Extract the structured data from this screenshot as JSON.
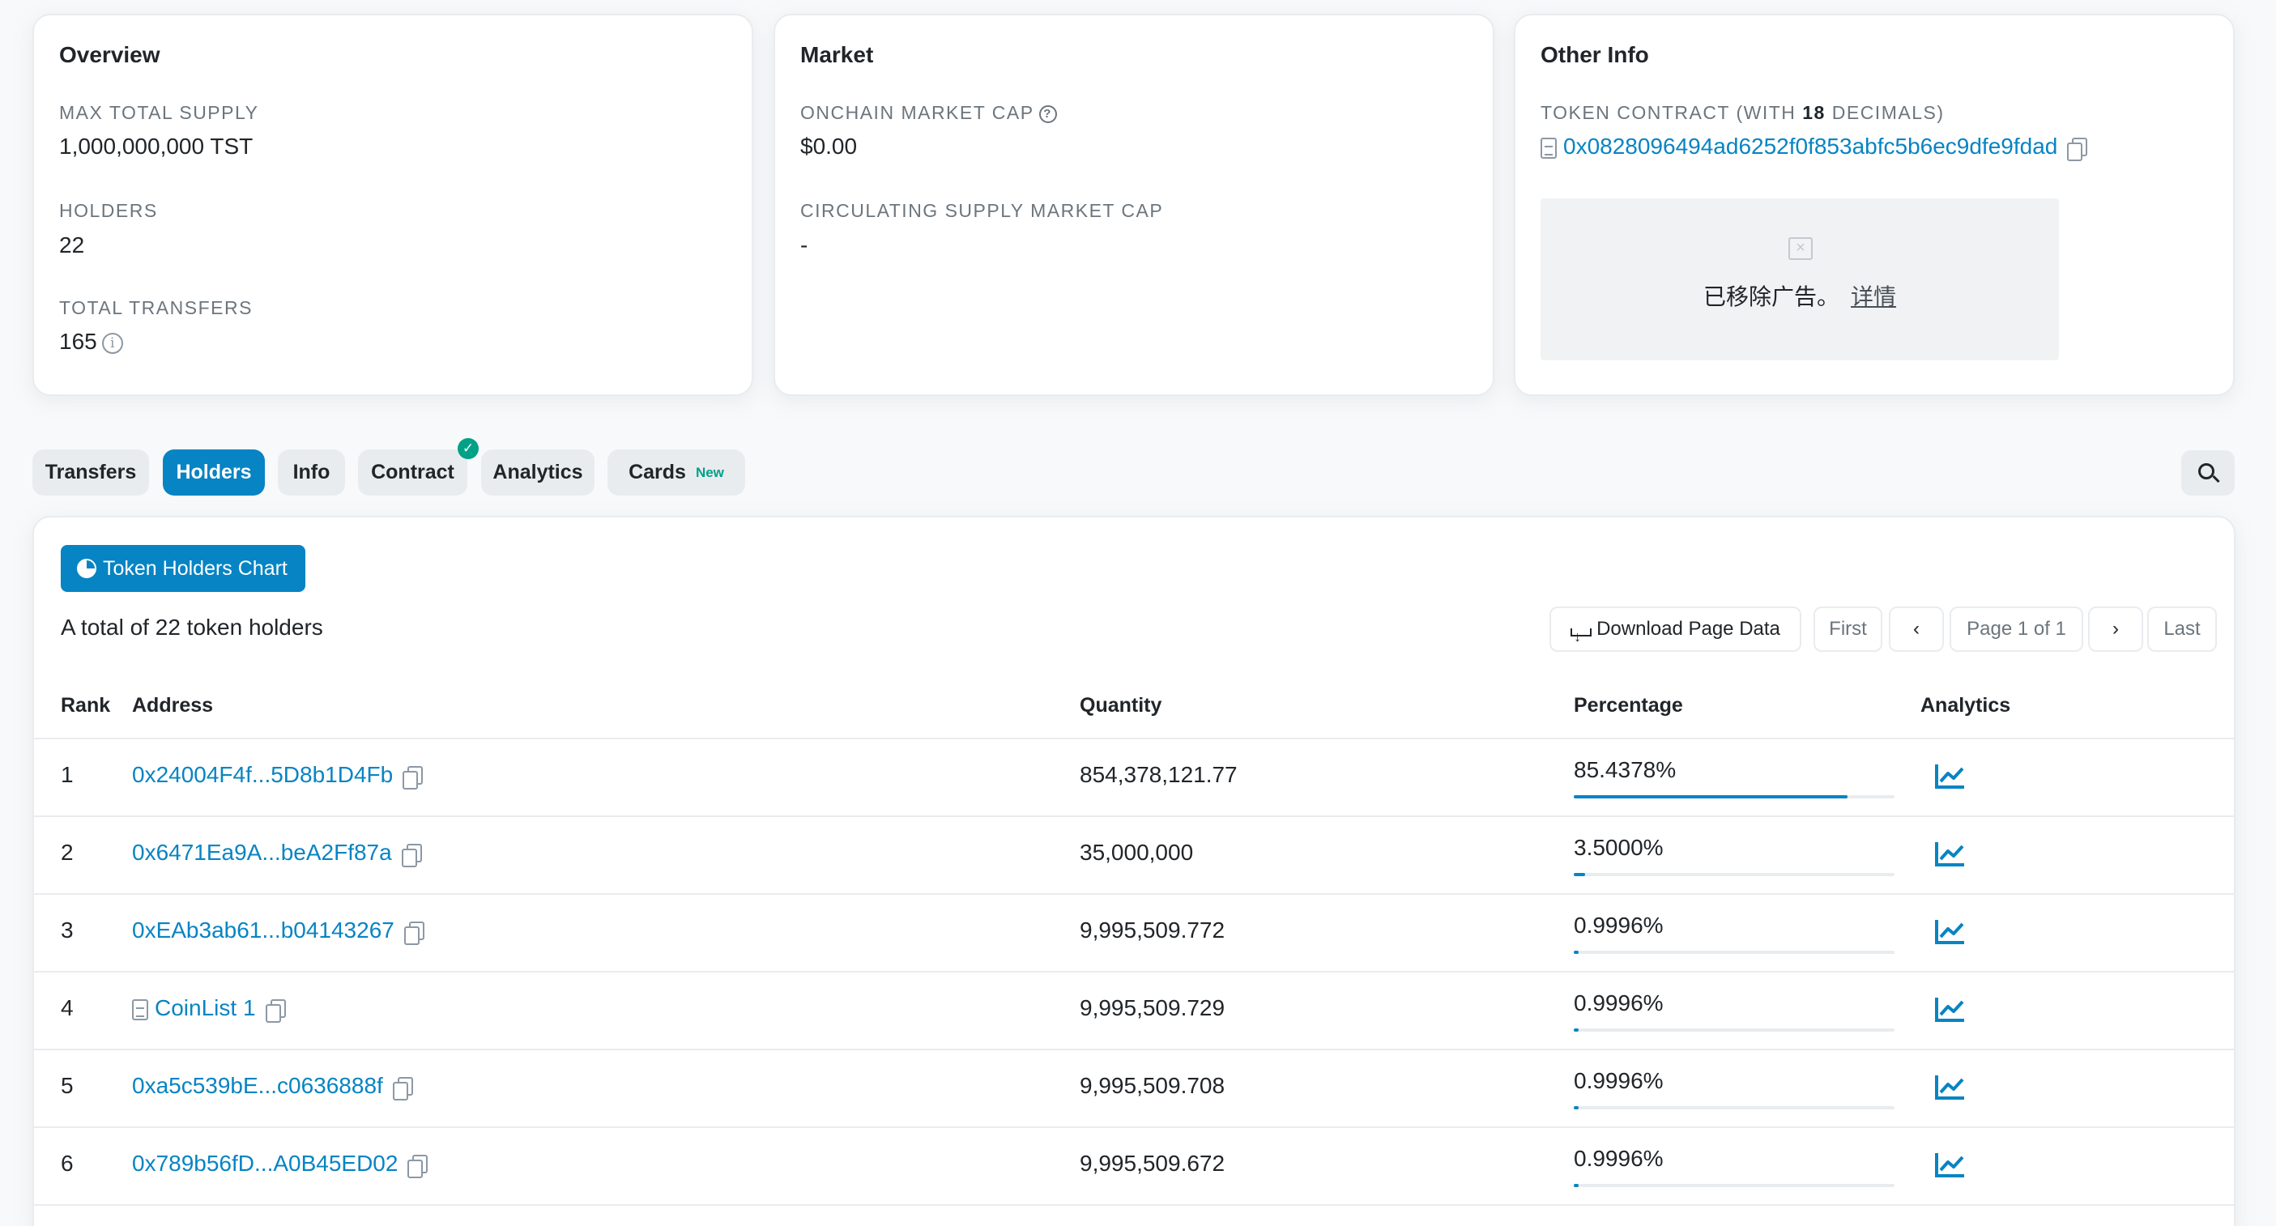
{
  "overview": {
    "title": "Overview",
    "max_supply_label": "MAX TOTAL SUPPLY",
    "max_supply_value": "1,000,000,000 TST",
    "holders_label": "HOLDERS",
    "holders_value": "22",
    "transfers_label": "TOTAL TRANSFERS",
    "transfers_value": "165"
  },
  "market": {
    "title": "Market",
    "onchain_cap_label": "ONCHAIN MARKET CAP",
    "onchain_cap_value": "$0.00",
    "circ_cap_label": "CIRCULATING SUPPLY MARKET CAP",
    "circ_cap_value": "-"
  },
  "other_info": {
    "title": "Other Info",
    "contract_label_prefix": "TOKEN CONTRACT (WITH ",
    "contract_decimals": "18",
    "contract_label_suffix": " DECIMALS)",
    "contract_address": "0x0828096494ad6252f0f853abfc5b6ec9dfe9fdad",
    "ad_text": "已移除广告。",
    "ad_link": "详情"
  },
  "tabs": [
    {
      "label": "Transfers"
    },
    {
      "label": "Holders",
      "active": true
    },
    {
      "label": "Info"
    },
    {
      "label": "Contract",
      "verified": true
    },
    {
      "label": "Analytics"
    },
    {
      "label": "Cards",
      "badge": "New"
    }
  ],
  "holders": {
    "chart_button": "Token Holders Chart",
    "total_text": "A total of 22 token holders",
    "download_label": "Download Page Data",
    "pagination": {
      "first": "First",
      "page": "Page 1 of 1",
      "last": "Last"
    },
    "columns": {
      "rank": "Rank",
      "address": "Address",
      "quantity": "Quantity",
      "percentage": "Percentage",
      "analytics": "Analytics"
    },
    "rows": [
      {
        "rank": "1",
        "address": "0x24004F4f...5D8b1D4Fb",
        "quantity": "854,378,121.77",
        "percentage": "85.4378%",
        "pct": 0.854378
      },
      {
        "rank": "2",
        "address": "0x6471Ea9A...beA2Ff87a",
        "quantity": "35,000,000",
        "percentage": "3.5000%",
        "pct": 0.035
      },
      {
        "rank": "3",
        "address": "0xEAb3ab61...b04143267",
        "quantity": "9,995,509.772",
        "percentage": "0.9996%",
        "pct": 0.009996
      },
      {
        "rank": "4",
        "address": "CoinList 1",
        "is_contract": true,
        "quantity": "9,995,509.729",
        "percentage": "0.9996%",
        "pct": 0.009996
      },
      {
        "rank": "5",
        "address": "0xa5c539bE...c0636888f",
        "quantity": "9,995,509.708",
        "percentage": "0.9996%",
        "pct": 0.009996
      },
      {
        "rank": "6",
        "address": "0x789b56fD...A0B45ED02",
        "quantity": "9,995,509.672",
        "percentage": "0.9996%",
        "pct": 0.009996
      }
    ]
  },
  "colors": {
    "accent": "#0784c3",
    "verified": "#00a186"
  }
}
